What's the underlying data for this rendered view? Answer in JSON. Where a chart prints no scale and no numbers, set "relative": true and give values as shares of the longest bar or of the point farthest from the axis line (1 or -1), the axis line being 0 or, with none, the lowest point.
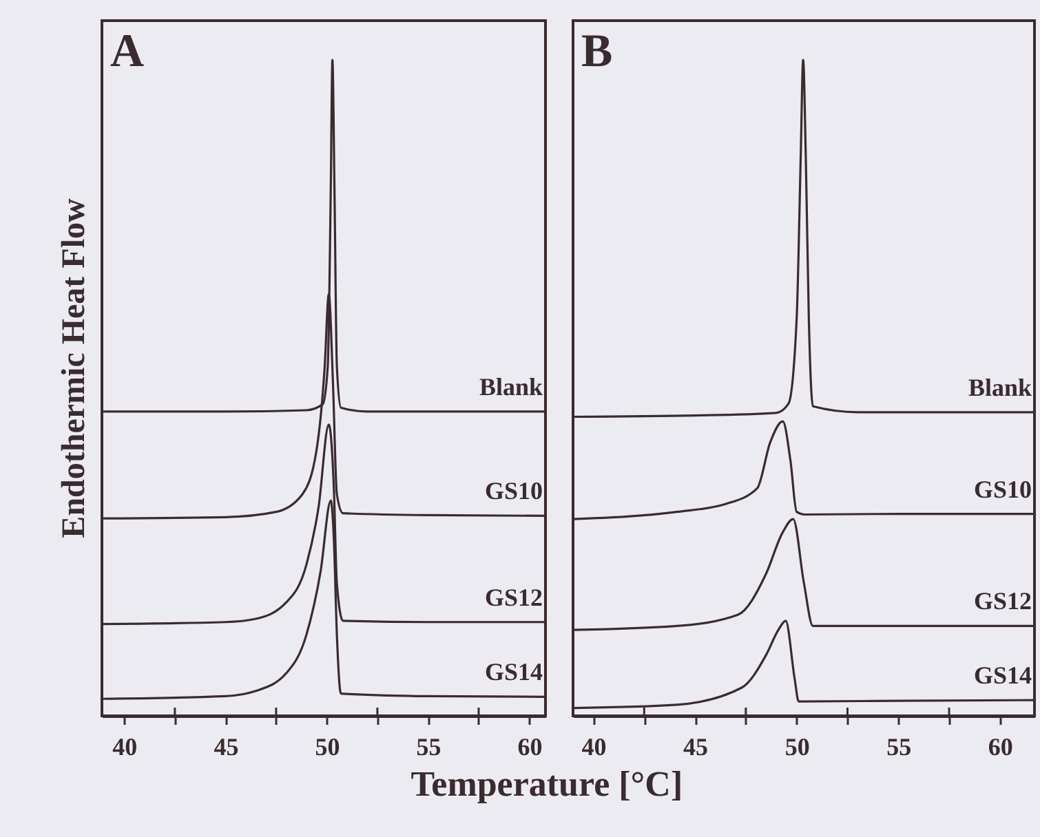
{
  "chart_data": [
    {
      "type": "line",
      "relative": true,
      "title": "A",
      "ylabel": "Endothermic Heat Flow",
      "xlabel": "Temperature [°C]",
      "xlim": [
        38.9,
        60.8
      ],
      "xticks": [
        40,
        {
          "value": 42.5,
          "label": null
        },
        45,
        {
          "value": 47.5,
          "label": null
        },
        50,
        {
          "value": 52.5,
          "label": null
        },
        55,
        {
          "value": 57.5,
          "label": null
        },
        60
      ],
      "grid": false,
      "legend": false,
      "marker": "none",
      "line_style": "solid",
      "series": [
        {
          "name": "Blank",
          "color": "#3a2b2e",
          "x": [
            38.9,
            45,
            49,
            49.8,
            50.05,
            50.2,
            50.28,
            50.38,
            50.5,
            50.7,
            52,
            60.8
          ],
          "values": [
            0.464,
            0.464,
            0.466,
            0.475,
            0.533,
            0.806,
            1.0,
            0.806,
            0.533,
            0.47,
            0.464,
            0.464
          ]
        },
        {
          "name": "GS10",
          "color": "#3a2b2e",
          "x": [
            38.9,
            45,
            47.5,
            48.8,
            49.5,
            49.9,
            50.1,
            50.3,
            50.5,
            50.8,
            55,
            60.8
          ],
          "values": [
            0.301,
            0.303,
            0.311,
            0.338,
            0.406,
            0.533,
            0.643,
            0.514,
            0.338,
            0.309,
            0.306,
            0.305
          ]
        },
        {
          "name": "GS12",
          "color": "#3a2b2e",
          "x": [
            38.9,
            45,
            46.5,
            48,
            49,
            49.6,
            50.1,
            50.35,
            50.5,
            50.8,
            55,
            60.8
          ],
          "values": [
            0.14,
            0.143,
            0.148,
            0.173,
            0.231,
            0.319,
            0.444,
            0.348,
            0.202,
            0.145,
            0.143,
            0.143
          ]
        },
        {
          "name": "GS14",
          "color": "#3a2b2e",
          "x": [
            38.9,
            45,
            46.5,
            48,
            49,
            49.7,
            50.2,
            50.35,
            50.5,
            50.7,
            55,
            60.8
          ],
          "values": [
            0.026,
            0.03,
            0.038,
            0.065,
            0.124,
            0.221,
            0.328,
            0.27,
            0.124,
            0.034,
            0.03,
            0.029
          ]
        }
      ]
    },
    {
      "type": "line",
      "relative": true,
      "title": "B",
      "xlim": [
        39.0,
        61.7
      ],
      "xticks": [
        40,
        {
          "value": 42.5,
          "label": null
        },
        45,
        {
          "value": 47.5,
          "label": null
        },
        50,
        {
          "value": 52.5,
          "label": null
        },
        55,
        {
          "value": 57.5,
          "label": null
        },
        60
      ],
      "grid": false,
      "legend": false,
      "marker": "none",
      "line_style": "solid",
      "series": [
        {
          "name": "Blank",
          "color": "#3a2b2e",
          "x": [
            39.0,
            45,
            49,
            49.6,
            50.0,
            50.2,
            50.32,
            50.45,
            50.6,
            50.8,
            53,
            61.7
          ],
          "values": [
            0.456,
            0.458,
            0.462,
            0.476,
            0.605,
            0.852,
            1.0,
            0.852,
            0.605,
            0.472,
            0.463,
            0.463
          ]
        },
        {
          "name": "GS10",
          "color": "#3a2b2e",
          "x": [
            39.0,
            44.1,
            46.5,
            48.06,
            48.7,
            49.32,
            49.7,
            50.0,
            50.4,
            55,
            61.7
          ],
          "values": [
            0.3,
            0.311,
            0.323,
            0.347,
            0.417,
            0.449,
            0.388,
            0.311,
            0.307,
            0.308,
            0.308
          ]
        },
        {
          "name": "GS12",
          "color": "#3a2b2e",
          "x": [
            39.0,
            44.1,
            47.1,
            48.5,
            49.3,
            49.83,
            50.36,
            50.8,
            55,
            61.7
          ],
          "values": [
            0.131,
            0.137,
            0.154,
            0.217,
            0.279,
            0.3,
            0.202,
            0.137,
            0.137,
            0.137
          ]
        },
        {
          "name": "GS14",
          "color": "#3a2b2e",
          "x": [
            39.0,
            44.1,
            47.3,
            48.5,
            49.1,
            49.46,
            49.9,
            50.1,
            55,
            61.7
          ],
          "values": [
            0.012,
            0.017,
            0.043,
            0.093,
            0.131,
            0.145,
            0.057,
            0.022,
            0.023,
            0.024
          ]
        }
      ]
    }
  ]
}
